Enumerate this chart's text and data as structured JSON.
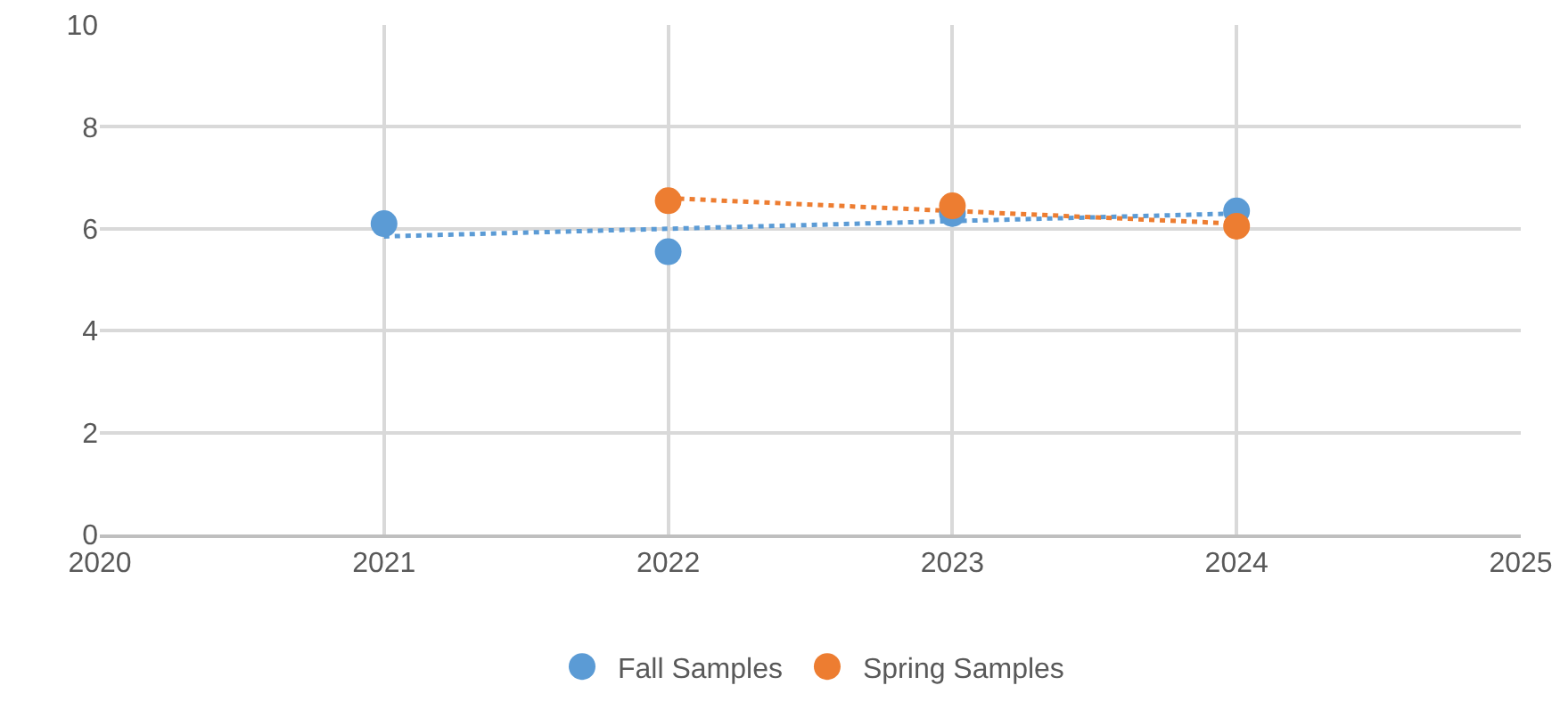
{
  "chart_data": {
    "type": "scatter",
    "xlim": [
      2020,
      2025
    ],
    "xticks": [
      2020,
      2021,
      2022,
      2023,
      2024,
      2025
    ],
    "ylim": [
      0,
      10
    ],
    "yticks": [
      0,
      2,
      4,
      6,
      8,
      10
    ],
    "grid": true,
    "legend": "bottom",
    "marker": "circle",
    "series": [
      {
        "name": "Fall Samples",
        "color": "#5b9bd5",
        "x": [
          2021,
          2022,
          2023,
          2024
        ],
        "values": [
          6.1,
          5.55,
          6.3,
          6.35
        ]
      },
      {
        "name": "Spring Samples",
        "color": "#ed7d31",
        "x": [
          2022,
          2023,
          2024
        ],
        "values": [
          6.55,
          6.45,
          6.05
        ]
      },
      {
        "type": "line",
        "color": "#5b9bd5",
        "line_style": "dotted",
        "marker": "none",
        "x": [
          2021,
          2024
        ],
        "values": [
          5.85,
          6.3
        ]
      },
      {
        "type": "line",
        "color": "#ed7d31",
        "line_style": "dotted",
        "marker": "none",
        "x": [
          2022,
          2024
        ],
        "values": [
          6.6,
          6.1
        ]
      }
    ]
  }
}
